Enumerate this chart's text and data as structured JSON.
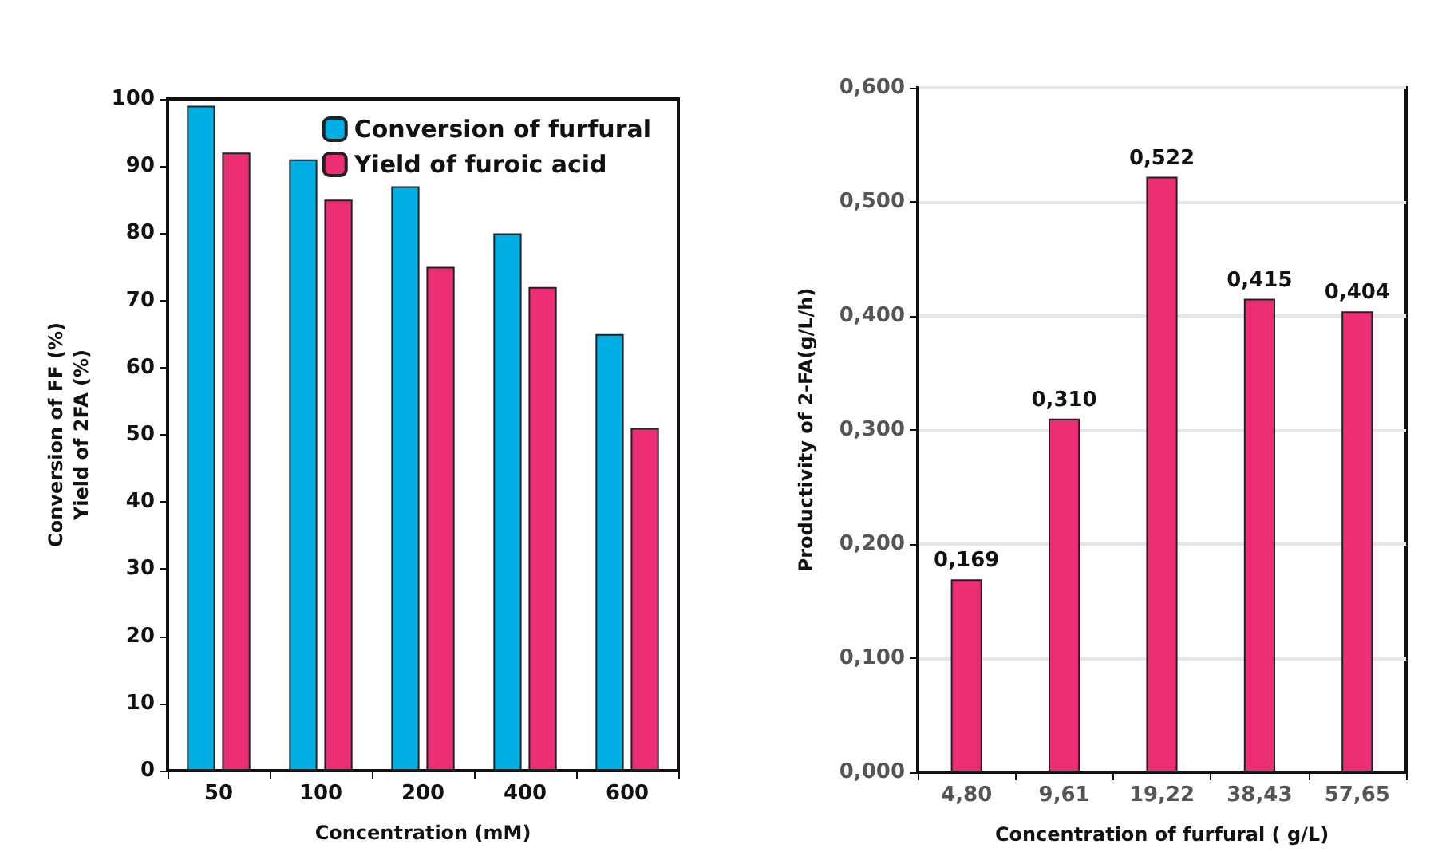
{
  "chart_data": [
    {
      "type": "bar",
      "xlabel": "Concentration (mM)",
      "ylabel": "Conversion of FF (%)\nYield of 2FA (%)",
      "categories": [
        "50",
        "100",
        "200",
        "400",
        "600"
      ],
      "series": [
        {
          "name": "Conversion of furfural",
          "color": "#00aee6",
          "values": [
            99,
            91,
            87,
            80,
            65
          ]
        },
        {
          "name": "Yield of furoic acid",
          "color": "#ec2f74",
          "values": [
            92,
            85,
            75,
            72,
            51
          ]
        }
      ],
      "ylim": [
        0,
        100
      ],
      "yticks": [
        0,
        10,
        20,
        30,
        40,
        50,
        60,
        70,
        80,
        90,
        100
      ],
      "grid": false,
      "legend": "top right"
    },
    {
      "type": "bar",
      "xlabel": "Concentration of furfural ( g/L)",
      "ylabel": "Productivity of 2-FA(g/L/h)",
      "categories": [
        "4,80",
        "9,61",
        "19,22",
        "38,43",
        "57,65"
      ],
      "series": [
        {
          "color": "#ec2f74",
          "values": [
            0.169,
            0.31,
            0.522,
            0.415,
            0.404
          ],
          "value_labels": [
            "0,169",
            "0,310",
            "0,522",
            "0,415",
            "0,404"
          ]
        }
      ],
      "ylim": [
        0,
        0.6
      ],
      "yticks": [
        {
          "value": 0,
          "label": "0,000"
        },
        {
          "value": 0.1,
          "label": "0,100"
        },
        {
          "value": 0.2,
          "label": "0,200"
        },
        {
          "value": 0.3,
          "label": "0,300"
        },
        {
          "value": 0.4,
          "label": "0,400"
        },
        {
          "value": 0.5,
          "label": "0,500"
        },
        {
          "value": 0.6,
          "label": "0,600"
        }
      ],
      "grid": "y",
      "legend": false
    }
  ]
}
